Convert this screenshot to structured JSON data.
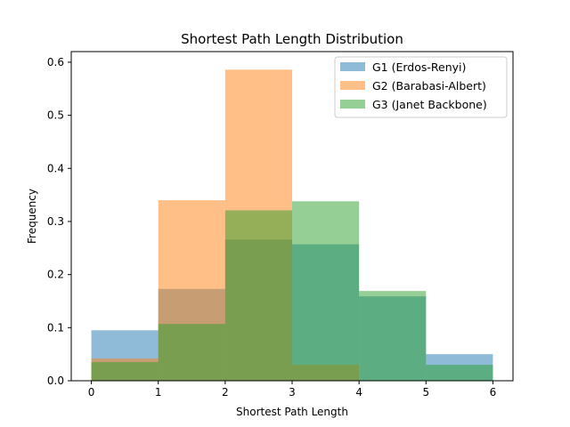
{
  "chart_data": {
    "type": "bar",
    "title": "Shortest Path Length Distribution",
    "xlabel": "Shortest Path Length",
    "ylabel": "Frequency",
    "xlim": [
      -0.3,
      6.3
    ],
    "ylim": [
      0,
      0.62
    ],
    "xticks": [
      0,
      1,
      2,
      3,
      4,
      5,
      6
    ],
    "yticks": [
      0.0,
      0.1,
      0.2,
      0.3,
      0.4,
      0.5,
      0.6
    ],
    "xtick_labels": [
      "0",
      "1",
      "2",
      "3",
      "4",
      "5",
      "6"
    ],
    "ytick_labels": [
      "0.0",
      "0.1",
      "0.2",
      "0.3",
      "0.4",
      "0.5",
      "0.6"
    ],
    "bin_edges": [
      0,
      1,
      2,
      3,
      4,
      5,
      6
    ],
    "legend_position": "top-right",
    "grid": false,
    "series": [
      {
        "name": "G1 (Erdos-Renyi)",
        "color": "#1f77b4",
        "alpha": 0.5,
        "values": [
          0.095,
          0.173,
          0.266,
          0.257,
          0.159,
          0.05
        ]
      },
      {
        "name": "G2 (Barabasi-Albert)",
        "color": "#ff7f0e",
        "alpha": 0.5,
        "values": [
          0.042,
          0.34,
          0.586,
          0.03,
          0.0,
          0.0
        ]
      },
      {
        "name": "G3 (Janet Backbone)",
        "color": "#2ca02c",
        "alpha": 0.5,
        "values": [
          0.035,
          0.107,
          0.321,
          0.338,
          0.169,
          0.03
        ]
      }
    ]
  }
}
